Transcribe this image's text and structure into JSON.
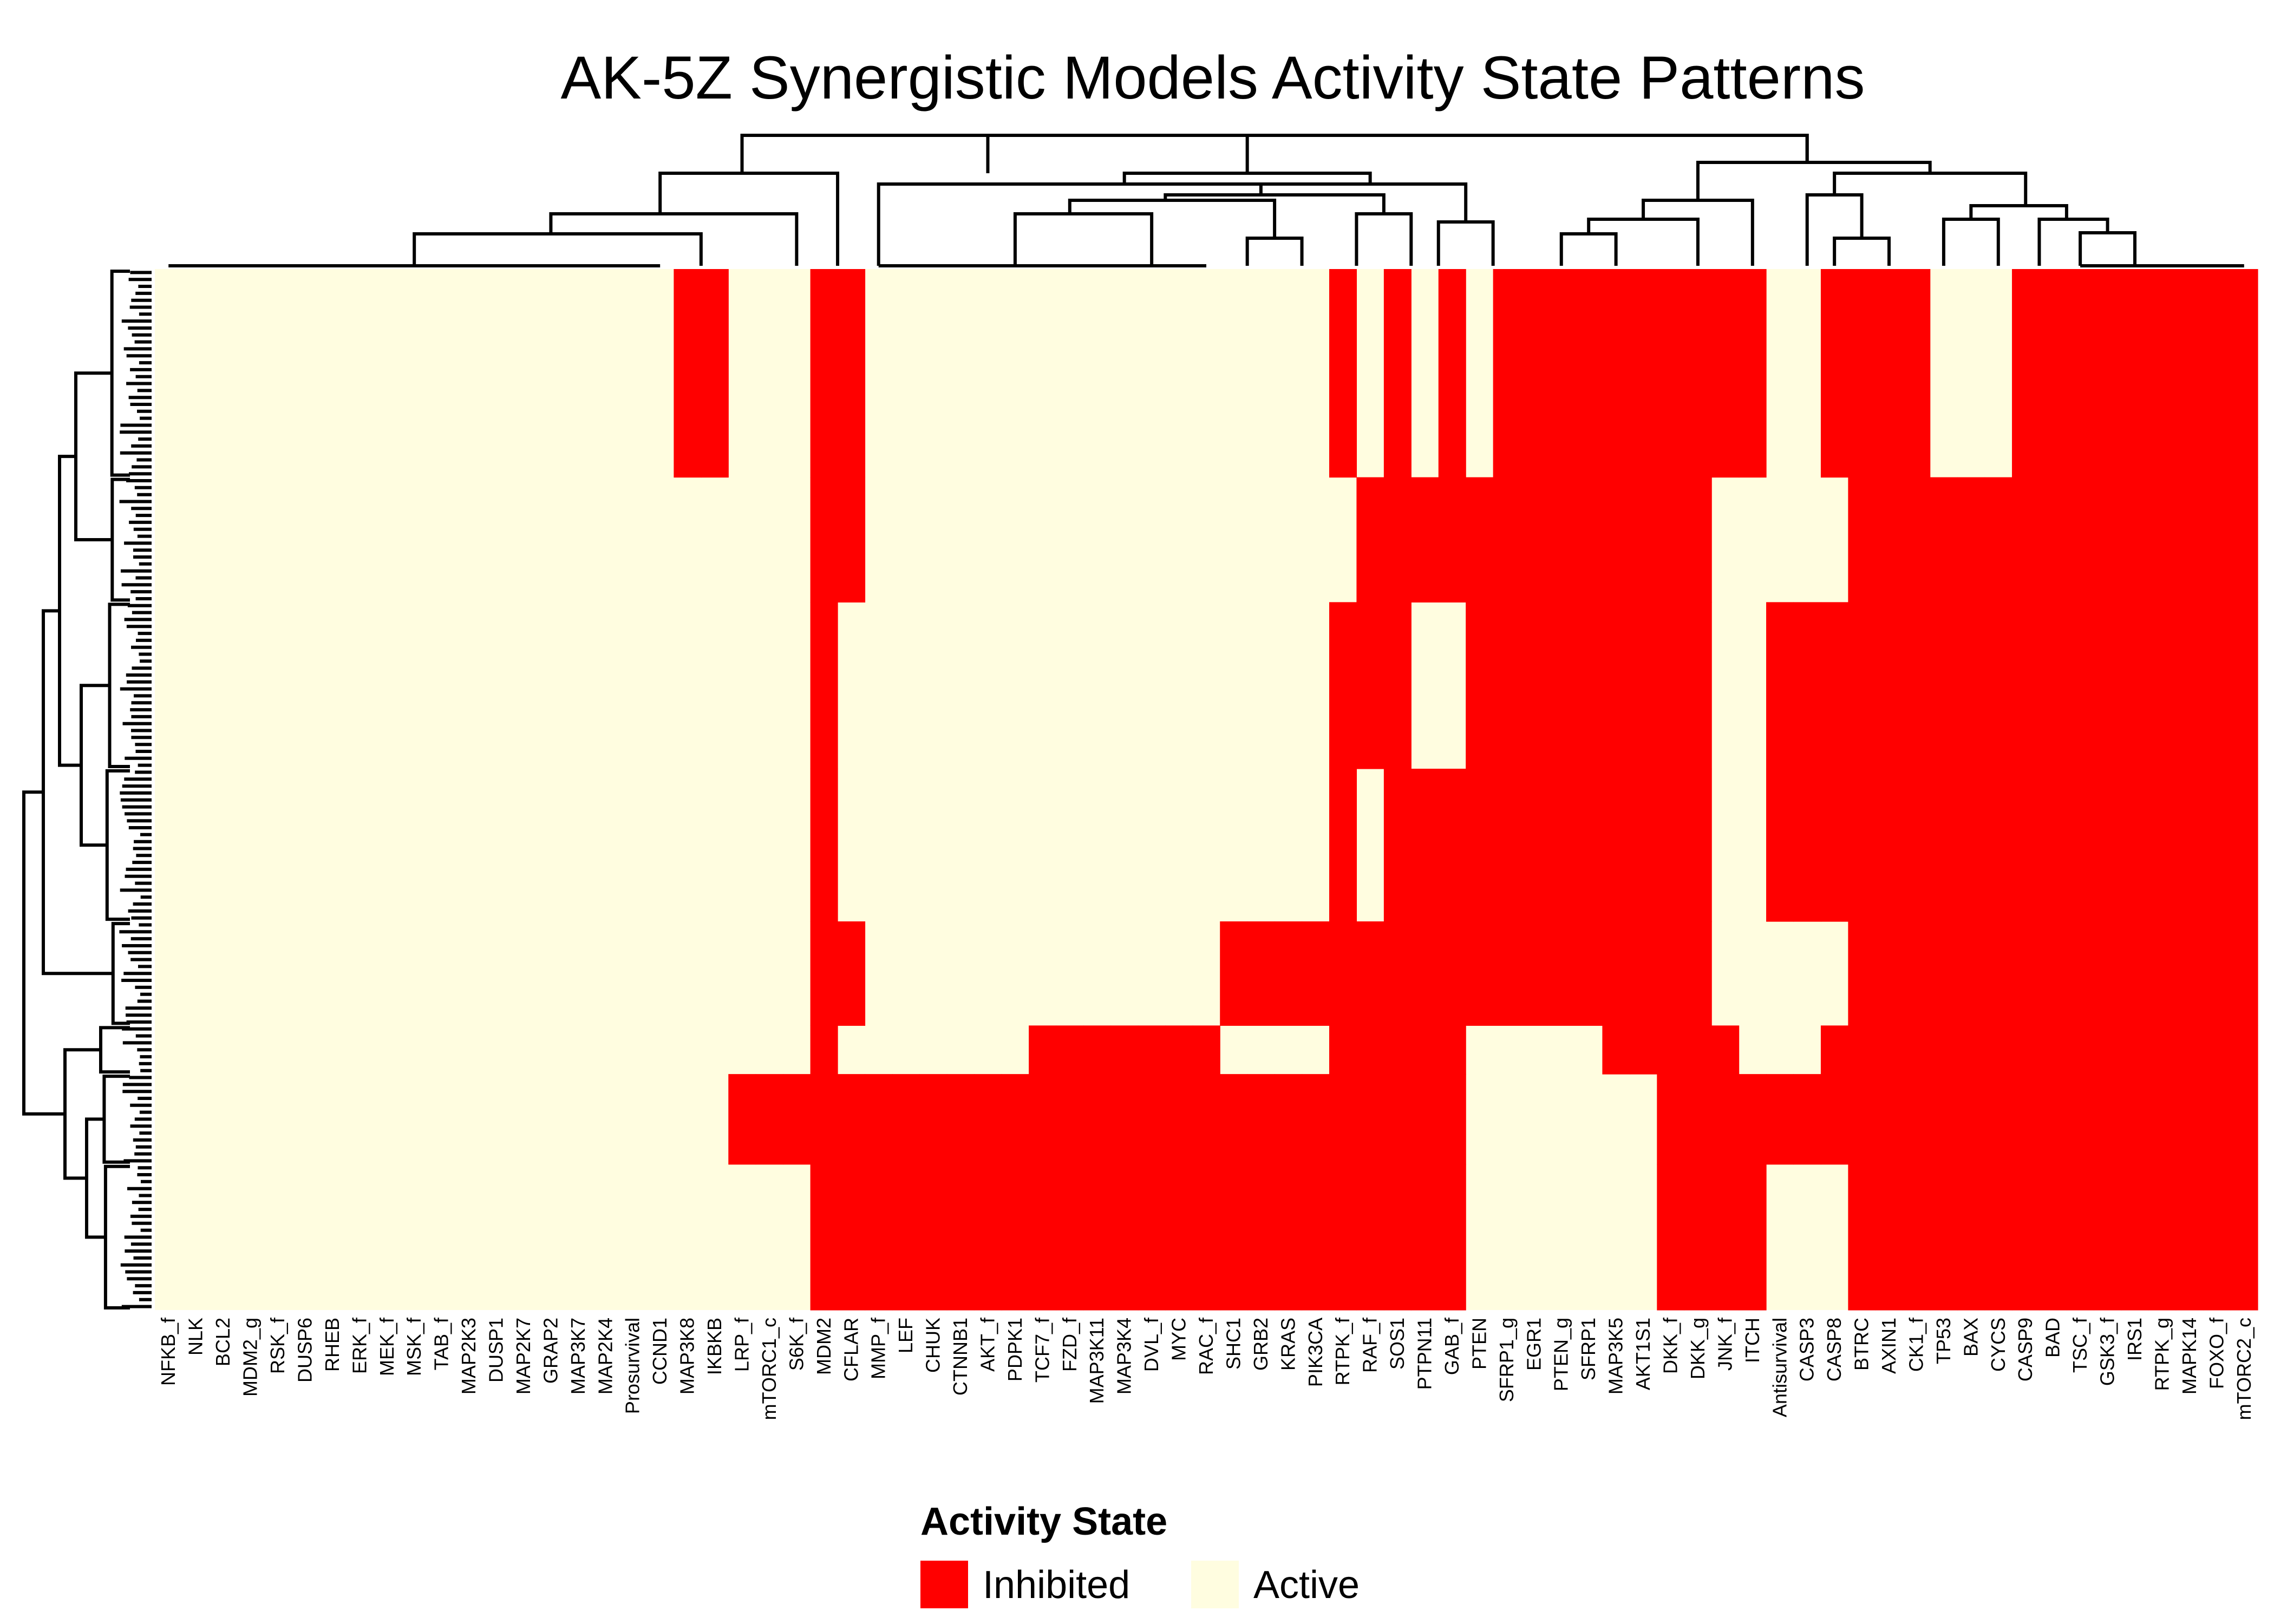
{
  "chart_data": {
    "type": "heatmap",
    "title": "AK-5Z Synergistic Models Activity State Patterns",
    "columns": [
      "NFKB_f",
      "NLK",
      "BCL2",
      "MDM2_g",
      "RSK_f",
      "DUSP6",
      "RHEB",
      "ERK_f",
      "MEK_f",
      "MSK_f",
      "TAB_f",
      "MAP2K3",
      "DUSP1",
      "MAP2K7",
      "GRAP2",
      "MAP3K7",
      "MAP2K4",
      "Prosurvival",
      "CCND1",
      "MAP3K8",
      "IKBKB",
      "LRP_f",
      "mTORC1_c",
      "S6K_f",
      "MDM2",
      "CFLAR",
      "MMP_f",
      "LEF",
      "CHUK",
      "CTNNB1",
      "AKT_f",
      "PDPK1",
      "TCF7_f",
      "FZD_f",
      "MAP3K11",
      "MAP3K4",
      "DVL_f",
      "MYC",
      "RAC_f",
      "SHC1",
      "GRB2",
      "KRAS",
      "PIK3CA",
      "RTPK_f",
      "RAF_f",
      "SOS1",
      "PTPN11",
      "GAB_f",
      "PTEN",
      "SFRP1_g",
      "EGR1",
      "PTEN_g",
      "SFRP1",
      "MAP3K5",
      "AKT1S1",
      "DKK_f",
      "DKK_g",
      "JNK_f",
      "ITCH",
      "Antisurvival",
      "CASP3",
      "CASP8",
      "BTRC",
      "AXIN1",
      "CK1_f",
      "TP53",
      "BAX",
      "CYCS",
      "CASP9",
      "BAD",
      "TSC_f",
      "GSK3_f",
      "IRS1",
      "RTPK_g",
      "MAPK14",
      "FOXO_f",
      "mTORC2_c"
    ],
    "states": {
      "0": "Inhibited",
      "1": "Active"
    },
    "legend": {
      "title": "Activity State",
      "entries": [
        "Inhibited",
        "Active"
      ]
    },
    "colors": {
      "Inhibited": "#ff0000",
      "Active": "#fffde0"
    },
    "n_rows": 150,
    "row_blocks": [
      {
        "rows": 30,
        "inhibited": [
          "MAP3K8",
          "IKBKB",
          "MDM2",
          "CFLAR",
          "SFRP1_g",
          "EGR1",
          "PTEN_g",
          "SFRP1",
          "MAP3K5",
          "AKT1S1",
          "DKK_f",
          "DKK_g",
          "JNK_f",
          "ITCH",
          "CASP8",
          "BTRC",
          "AXIN1",
          "CK1_f",
          "CASP9",
          "BAD",
          "TSC_f",
          "GSK3_f",
          "IRS1",
          "RTPK_g",
          "MAPK14",
          "FOXO_f",
          "mTORC2_c",
          "RTPK_f",
          "SOS1",
          "GAB_f"
        ]
      },
      {
        "rows": 18,
        "inhibited": [
          "MDM2",
          "CFLAR",
          "RAF_f",
          "SOS1",
          "PTPN11",
          "GAB_f",
          "PTEN",
          "SFRP1_g",
          "EGR1",
          "PTEN_g",
          "SFRP1",
          "MAP3K5",
          "AKT1S1",
          "DKK_f",
          "DKK_g",
          "BTRC",
          "AXIN1",
          "CK1_f",
          "TP53",
          "BAX",
          "CYCS",
          "CASP9",
          "BAD",
          "TSC_f",
          "GSK3_f",
          "IRS1",
          "RTPK_g",
          "MAPK14",
          "FOXO_f",
          "mTORC2_c"
        ]
      },
      {
        "rows": 24,
        "inhibited": [
          "MDM2",
          "RTPK_f",
          "RAF_f",
          "SOS1",
          "PTEN",
          "SFRP1_g",
          "EGR1",
          "PTEN_g",
          "SFRP1",
          "MAP3K5",
          "AKT1S1",
          "DKK_f",
          "DKK_g",
          "Antisurvival",
          "CASP3",
          "CASP8",
          "BTRC",
          "AXIN1",
          "CK1_f",
          "TP53",
          "BAX",
          "CYCS",
          "CASP9",
          "BAD",
          "TSC_f",
          "GSK3_f",
          "IRS1",
          "RTPK_g",
          "MAPK14",
          "FOXO_f",
          "mTORC2_c"
        ]
      },
      {
        "rows": 22,
        "inhibited": [
          "MDM2",
          "RTPK_f",
          "SOS1",
          "PTPN11",
          "GAB_f",
          "PTEN",
          "SFRP1_g",
          "EGR1",
          "PTEN_g",
          "SFRP1",
          "MAP3K5",
          "AKT1S1",
          "DKK_f",
          "DKK_g",
          "Antisurvival",
          "CASP3",
          "CASP8",
          "BTRC",
          "AXIN1",
          "CK1_f",
          "TP53",
          "BAX",
          "CYCS",
          "CASP9",
          "BAD",
          "TSC_f",
          "GSK3_f",
          "IRS1",
          "RTPK_g",
          "MAPK14",
          "FOXO_f",
          "mTORC2_c"
        ]
      },
      {
        "rows": 15,
        "inhibited": [
          "MDM2",
          "CFLAR",
          "SHC1",
          "GRB2",
          "KRAS",
          "PIK3CA",
          "RTPK_f",
          "RAF_f",
          "SOS1",
          "PTPN11",
          "GAB_f",
          "PTEN",
          "SFRP1_g",
          "EGR1",
          "PTEN_g",
          "SFRP1",
          "MAP3K5",
          "AKT1S1",
          "DKK_f",
          "DKK_g",
          "BTRC",
          "AXIN1",
          "CK1_f",
          "TP53",
          "BAX",
          "CYCS",
          "CASP9",
          "BAD",
          "TSC_f",
          "GSK3_f",
          "IRS1",
          "RTPK_g",
          "MAPK14",
          "FOXO_f",
          "mTORC2_c"
        ]
      },
      {
        "rows": 7,
        "inhibited": [
          "MDM2",
          "TCF7_f",
          "FZD_f",
          "MAP3K11",
          "MAP3K4",
          "DVL_f",
          "MYC",
          "RAC_f",
          "RTPK_f",
          "RAF_f",
          "SOS1",
          "PTPN11",
          "GAB_f",
          "MAP3K5",
          "AKT1S1",
          "DKK_f",
          "DKK_g",
          "JNK_f",
          "CASP8",
          "BTRC",
          "AXIN1",
          "CK1_f",
          "TP53",
          "BAX",
          "CYCS",
          "CASP9",
          "BAD",
          "TSC_f",
          "GSK3_f",
          "IRS1",
          "RTPK_g",
          "MAPK14",
          "FOXO_f",
          "mTORC2_c"
        ]
      },
      {
        "rows": 13,
        "inhibited": [
          "LRP_f",
          "mTORC1_c",
          "S6K_f",
          "MDM2",
          "CFLAR",
          "MMP_f",
          "LEF",
          "CHUK",
          "CTNNB1",
          "AKT_f",
          "PDPK1",
          "TCF7_f",
          "FZD_f",
          "MAP3K11",
          "MAP3K4",
          "DVL_f",
          "MYC",
          "RAC_f",
          "SHC1",
          "GRB2",
          "KRAS",
          "PIK3CA",
          "RTPK_f",
          "RAF_f",
          "SOS1",
          "PTPN11",
          "GAB_f",
          "DKK_f",
          "DKK_g",
          "JNK_f",
          "ITCH",
          "Antisurvival",
          "CASP3",
          "CASP8",
          "BTRC",
          "AXIN1",
          "CK1_f",
          "TP53",
          "BAX",
          "CYCS",
          "CASP9",
          "BAD",
          "TSC_f",
          "GSK3_f",
          "IRS1",
          "RTPK_g",
          "MAPK14",
          "FOXO_f",
          "mTORC2_c"
        ]
      },
      {
        "rows": 21,
        "inhibited": [
          "MDM2",
          "CFLAR",
          "MMP_f",
          "LEF",
          "CHUK",
          "CTNNB1",
          "AKT_f",
          "PDPK1",
          "TCF7_f",
          "FZD_f",
          "MAP3K11",
          "MAP3K4",
          "DVL_f",
          "MYC",
          "RAC_f",
          "SHC1",
          "GRB2",
          "KRAS",
          "PIK3CA",
          "RTPK_f",
          "RAF_f",
          "SOS1",
          "PTPN11",
          "GAB_f",
          "DKK_f",
          "DKK_g",
          "JNK_f",
          "ITCH",
          "BTRC",
          "AXIN1",
          "CK1_f",
          "TP53",
          "BAX",
          "CYCS",
          "CASP9",
          "BAD",
          "TSC_f",
          "GSK3_f",
          "IRS1",
          "RTPK_g",
          "MAPK14",
          "FOXO_f",
          "mTORC2_c"
        ]
      }
    ]
  }
}
